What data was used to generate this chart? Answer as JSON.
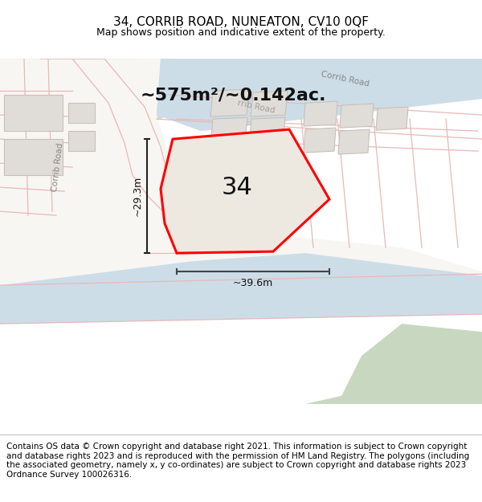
{
  "title": "34, CORRIB ROAD, NUNEATON, CV10 0QF",
  "subtitle": "Map shows position and indicative extent of the property.",
  "area_text": "~575m²/~0.142ac.",
  "dim_width": "~39.6m",
  "dim_height": "~29.3m",
  "label_34": "34",
  "footer": "Contains OS data © Crown copyright and database right 2021. This information is subject to Crown copyright and database rights 2023 and is reproduced with the permission of HM Land Registry. The polygons (including the associated geometry, namely x, y co-ordinates) are subject to Crown copyright and database rights 2023 Ordnance Survey 100026316.",
  "bg_map": "#f5f3f0",
  "road_color": "#ccdde8",
  "building_fill": "#e0ddd8",
  "building_stroke": "#c8c0b8",
  "plot_fill": "#ede8e0",
  "red_color": "#ff0000",
  "pink_color": "#e8b8b8",
  "green_area": "#d0ddd0",
  "green_area2": "#c8d8c0",
  "road_label_color": "#888888",
  "title_fontsize": 11,
  "subtitle_fontsize": 9,
  "area_fontsize": 16,
  "label_fontsize": 22,
  "footer_fontsize": 7.5
}
